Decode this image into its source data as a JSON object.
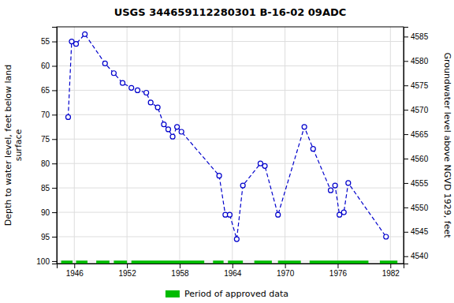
{
  "chart_data": {
    "type": "line",
    "title": "USGS 344659112280301 B-16-02 09ADC",
    "ylabel": "Depth to water level, feet below land\nsurface",
    "y2label": "Groundwater level above NGVD 1929, feet",
    "xlim": [
      1944.0,
      1983.5
    ],
    "xticks": [
      1946,
      1952,
      1958,
      1964,
      1970,
      1976,
      1982
    ],
    "ylim": [
      100.5,
      52.0
    ],
    "yticks": [
      55,
      60,
      65,
      70,
      75,
      80,
      85,
      90,
      95,
      100
    ],
    "y2lim": [
      4538.5,
      4587.0
    ],
    "y2ticks": [
      4585,
      4580,
      4575,
      4570,
      4565,
      4560,
      4555,
      4550,
      4545,
      4540
    ],
    "grid": true,
    "legend": "bottom",
    "x": [
      1945.3,
      1945.7,
      1946.2,
      1947.2,
      1949.5,
      1950.5,
      1951.5,
      1952.5,
      1953.2,
      1954.2,
      1954.7,
      1955.5,
      1956.2,
      1956.7,
      1957.2,
      1957.7,
      1958.2,
      1962.5,
      1963.2,
      1963.7,
      1964.5,
      1965.2,
      1967.2,
      1967.7,
      1969.2,
      1972.2,
      1973.2,
      1975.2,
      1975.7,
      1976.2,
      1976.7,
      1977.2,
      1981.5
    ],
    "series": [
      {
        "type": "line",
        "color": "#0000CC",
        "marker": "circle",
        "line_style": "dashed",
        "values": [
          70.5,
          55.0,
          55.5,
          53.5,
          59.5,
          61.5,
          63.5,
          64.5,
          65.0,
          65.5,
          67.5,
          68.5,
          72.0,
          73.0,
          74.5,
          72.5,
          73.5,
          82.5,
          90.5,
          90.5,
          95.5,
          84.5,
          80.0,
          80.5,
          90.5,
          72.5,
          77.0,
          85.5,
          84.5,
          90.5,
          90.0,
          84.0,
          95.0
        ]
      },
      {
        "type": "segment",
        "name": "Period of approved data",
        "color": "#00bb00",
        "value": 100.3,
        "segments": [
          [
            1944.5,
            1945.8
          ],
          [
            1946.2,
            1947.5
          ],
          [
            1948.5,
            1950.0
          ],
          [
            1950.5,
            1952.0
          ],
          [
            1952.5,
            1960.8
          ],
          [
            1961.8,
            1963.0
          ],
          [
            1963.5,
            1965.2
          ],
          [
            1966.5,
            1968.5
          ],
          [
            1969.2,
            1971.8
          ],
          [
            1972.8,
            1979.5
          ],
          [
            1980.8,
            1982.8
          ]
        ]
      }
    ]
  }
}
